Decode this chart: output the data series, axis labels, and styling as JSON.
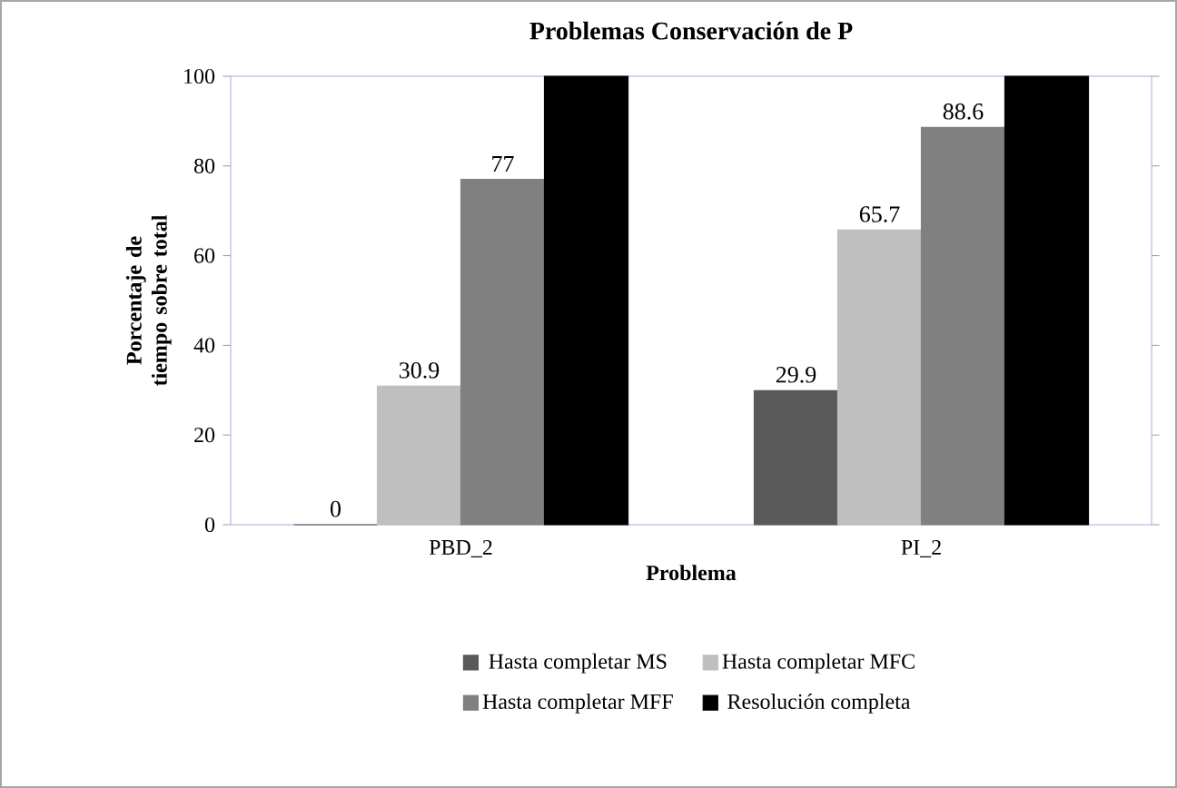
{
  "chart_data": {
    "type": "bar",
    "title": "Problemas Conservación de P",
    "xlabel": "Problema",
    "ylabel": "Porcentaje de tiempo sobre total",
    "categories": [
      "PBD_2",
      "PI_2"
    ],
    "series": [
      {
        "name": "Hasta completar MS",
        "color": "#595959",
        "values": [
          0,
          29.9
        ],
        "value_labels": [
          "0",
          "29.9"
        ]
      },
      {
        "name": "Hasta completar MFC",
        "color": "#bfbfbf",
        "values": [
          30.9,
          65.7
        ],
        "value_labels": [
          "30.9",
          "65.7"
        ]
      },
      {
        "name": "Hasta completar MFF",
        "color": "#808080",
        "values": [
          77,
          88.6
        ],
        "value_labels": [
          "77",
          "88.6"
        ]
      },
      {
        "name": "Resolución completa",
        "color": "#000000",
        "values": [
          100,
          100
        ],
        "value_labels": [
          null,
          null
        ]
      }
    ],
    "ylim": [
      0,
      100
    ],
    "yticks": [
      0,
      20,
      40,
      60,
      80,
      100
    ],
    "legend": "bottom"
  }
}
